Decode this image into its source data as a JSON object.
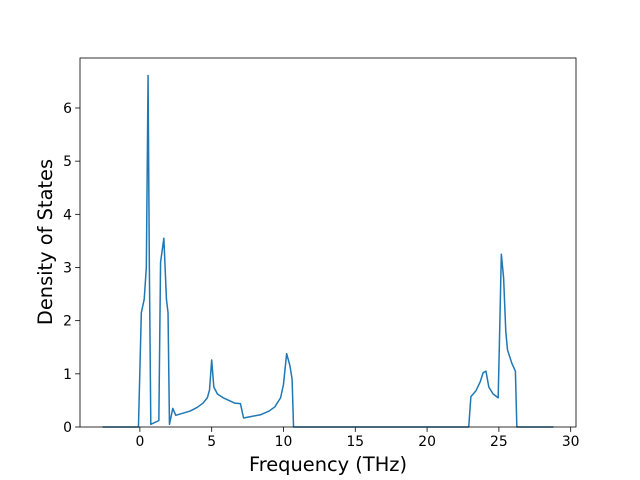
{
  "chart_data": {
    "type": "line",
    "xlabel": "Frequency (THz)",
    "ylabel": "Density of States",
    "xlim": [
      -4.17,
      30.37
    ],
    "ylim": [
      0,
      6.94
    ],
    "xticks": [
      0,
      5,
      10,
      15,
      20,
      25,
      30
    ],
    "yticks": [
      0,
      1,
      2,
      3,
      4,
      5,
      6
    ],
    "series": [
      {
        "color": "#1f77b4",
        "x": [
          -2.6,
          -0.1,
          0.1,
          0.3,
          0.45,
          0.57,
          0.66,
          0.76,
          1.32,
          1.44,
          1.67,
          1.85,
          1.96,
          2.06,
          2.29,
          2.5,
          3.0,
          3.5,
          4.0,
          4.4,
          4.7,
          4.85,
          5.0,
          5.15,
          5.4,
          5.8,
          6.2,
          6.6,
          7.0,
          7.22,
          7.8,
          8.4,
          9.0,
          9.4,
          9.8,
          10.0,
          10.22,
          10.45,
          10.6,
          10.7,
          22.9,
          23.05,
          23.4,
          23.7,
          23.9,
          24.1,
          24.3,
          24.6,
          24.95,
          25.03,
          25.17,
          25.33,
          25.48,
          25.6,
          25.9,
          26.15,
          26.25,
          28.8
        ],
        "values": [
          0,
          0,
          2.15,
          2.4,
          3.0,
          6.61,
          3.0,
          0.05,
          0.12,
          3.1,
          3.55,
          2.4,
          2.15,
          0.05,
          0.35,
          0.22,
          0.26,
          0.3,
          0.37,
          0.45,
          0.55,
          0.7,
          1.26,
          0.75,
          0.62,
          0.55,
          0.5,
          0.45,
          0.44,
          0.17,
          0.2,
          0.23,
          0.3,
          0.38,
          0.55,
          0.8,
          1.38,
          1.15,
          0.9,
          0,
          0,
          0.57,
          0.68,
          0.85,
          1.02,
          1.05,
          0.75,
          0.62,
          0.55,
          1.5,
          3.25,
          2.8,
          1.8,
          1.45,
          1.2,
          1.05,
          0,
          0
        ]
      }
    ]
  }
}
